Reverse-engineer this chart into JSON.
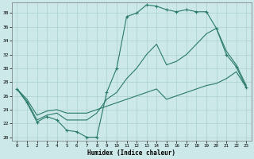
{
  "title": "",
  "xlabel": "Humidex (Indice chaleur)",
  "bg_color": "#cce8e8",
  "grid_color": "#aad0d0",
  "line_color": "#2a7a6a",
  "xlim": [
    -0.5,
    23.5
  ],
  "ylim": [
    19.5,
    39.5
  ],
  "xticks": [
    0,
    1,
    2,
    3,
    4,
    5,
    6,
    7,
    8,
    9,
    10,
    11,
    12,
    13,
    14,
    15,
    16,
    17,
    18,
    19,
    20,
    21,
    22,
    23
  ],
  "yticks": [
    20,
    22,
    24,
    26,
    28,
    30,
    32,
    34,
    36,
    38
  ],
  "series1_x": [
    0,
    1,
    2,
    3,
    4,
    5,
    6,
    7,
    8,
    9,
    10,
    11,
    12,
    13,
    14,
    15,
    16,
    17,
    18,
    19,
    20,
    21,
    22,
    23
  ],
  "series1_y": [
    27,
    25,
    22.2,
    23,
    22.5,
    21,
    20.8,
    20,
    20,
    26.5,
    30,
    37.5,
    38,
    39.2,
    39,
    38.5,
    38.2,
    38.5,
    38.2,
    38.2,
    35.8,
    32,
    30.2,
    27.2
  ],
  "series2_x": [
    0,
    1,
    2,
    3,
    4,
    5,
    6,
    7,
    8,
    9,
    10,
    11,
    12,
    13,
    14,
    15,
    16,
    17,
    18,
    19,
    20,
    21,
    22,
    23
  ],
  "series2_y": [
    27,
    25.2,
    22.5,
    23.2,
    23.5,
    22.5,
    22.5,
    22.5,
    23.5,
    25.5,
    26.5,
    28.5,
    30,
    32,
    33.5,
    30.5,
    31,
    32,
    33.5,
    35,
    35.8,
    32.5,
    30.5,
    27.5
  ],
  "series3_x": [
    0,
    1,
    2,
    3,
    4,
    5,
    6,
    7,
    8,
    9,
    10,
    11,
    12,
    13,
    14,
    15,
    16,
    17,
    18,
    19,
    20,
    21,
    22,
    23
  ],
  "series3_y": [
    27,
    25.5,
    23.2,
    23.8,
    24.0,
    23.5,
    23.5,
    23.5,
    24.0,
    24.5,
    25.0,
    25.5,
    26.0,
    26.5,
    27.0,
    25.5,
    26.0,
    26.5,
    27.0,
    27.5,
    27.8,
    28.5,
    29.5,
    27.2
  ]
}
